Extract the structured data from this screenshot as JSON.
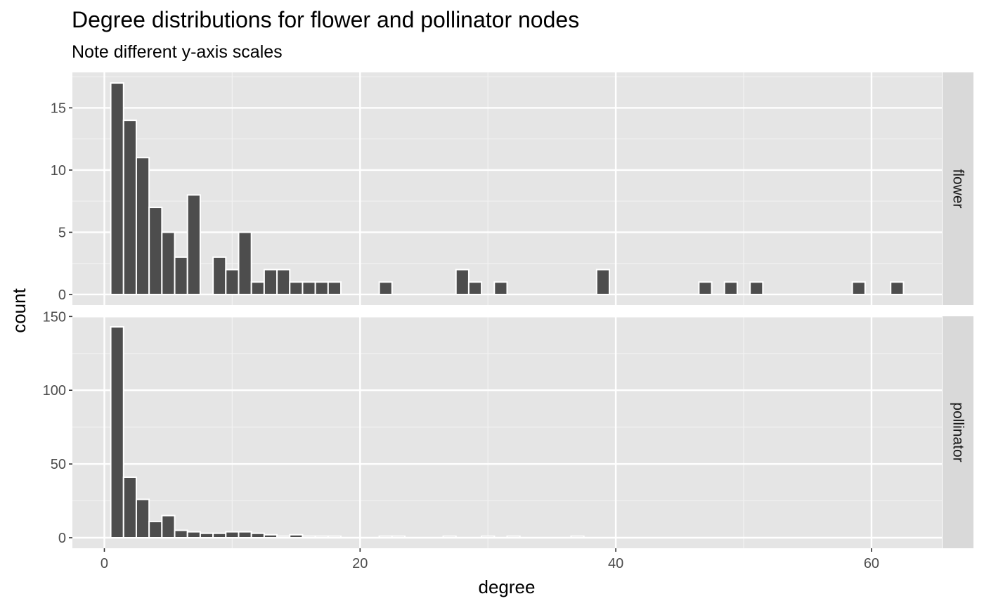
{
  "chart_data": {
    "type": "bar",
    "title": "Degree distributions for flower and pollinator nodes",
    "subtitle": "Note different y-axis scales",
    "xlabel": "degree",
    "ylabel": "count",
    "xlim": [
      -2.5,
      65.5
    ],
    "x_ticks": [
      0,
      20,
      40,
      60
    ],
    "grid": true,
    "facet": "rows",
    "colors": {
      "bar_fill": "#4d4d4d",
      "bar_outline": "#ffffff",
      "panel_background": "#e5e5e5",
      "grid_major": "#ffffff",
      "grid_minor": "#f2f2f2",
      "strip_background": "#d9d9d9",
      "tick_label": "#4d4d4d"
    },
    "panels": [
      {
        "strip": "flower",
        "ylim": [
          -0.85,
          17.85
        ],
        "y_ticks": [
          0,
          5,
          10,
          15
        ],
        "bars": [
          {
            "x": 1,
            "count": 17
          },
          {
            "x": 2,
            "count": 14
          },
          {
            "x": 3,
            "count": 11
          },
          {
            "x": 4,
            "count": 7
          },
          {
            "x": 5,
            "count": 5
          },
          {
            "x": 6,
            "count": 3
          },
          {
            "x": 7,
            "count": 8
          },
          {
            "x": 9,
            "count": 3
          },
          {
            "x": 10,
            "count": 2
          },
          {
            "x": 11,
            "count": 5
          },
          {
            "x": 12,
            "count": 1
          },
          {
            "x": 13,
            "count": 2
          },
          {
            "x": 14,
            "count": 2
          },
          {
            "x": 15,
            "count": 1
          },
          {
            "x": 16,
            "count": 1
          },
          {
            "x": 17,
            "count": 1
          },
          {
            "x": 18,
            "count": 1
          },
          {
            "x": 22,
            "count": 1
          },
          {
            "x": 28,
            "count": 2
          },
          {
            "x": 29,
            "count": 1
          },
          {
            "x": 31,
            "count": 1
          },
          {
            "x": 39,
            "count": 2
          },
          {
            "x": 47,
            "count": 1
          },
          {
            "x": 49,
            "count": 1
          },
          {
            "x": 51,
            "count": 1
          },
          {
            "x": 59,
            "count": 1
          },
          {
            "x": 62,
            "count": 1
          }
        ]
      },
      {
        "strip": "pollinator",
        "ylim": [
          -7.15,
          150.15
        ],
        "y_ticks": [
          0,
          50,
          100,
          150
        ],
        "bars": [
          {
            "x": 1,
            "count": 143
          },
          {
            "x": 2,
            "count": 41
          },
          {
            "x": 3,
            "count": 26
          },
          {
            "x": 4,
            "count": 11
          },
          {
            "x": 5,
            "count": 15
          },
          {
            "x": 6,
            "count": 5
          },
          {
            "x": 7,
            "count": 4
          },
          {
            "x": 8,
            "count": 3
          },
          {
            "x": 9,
            "count": 3
          },
          {
            "x": 10,
            "count": 4
          },
          {
            "x": 11,
            "count": 4
          },
          {
            "x": 12,
            "count": 3
          },
          {
            "x": 13,
            "count": 2
          },
          {
            "x": 14,
            "count": 1
          },
          {
            "x": 15,
            "count": 2
          },
          {
            "x": 16,
            "count": 1
          },
          {
            "x": 17,
            "count": 1
          },
          {
            "x": 18,
            "count": 1
          },
          {
            "x": 22,
            "count": 1
          },
          {
            "x": 23,
            "count": 1
          },
          {
            "x": 27,
            "count": 1
          },
          {
            "x": 30,
            "count": 1
          },
          {
            "x": 32,
            "count": 1
          },
          {
            "x": 37,
            "count": 1
          }
        ]
      }
    ]
  }
}
